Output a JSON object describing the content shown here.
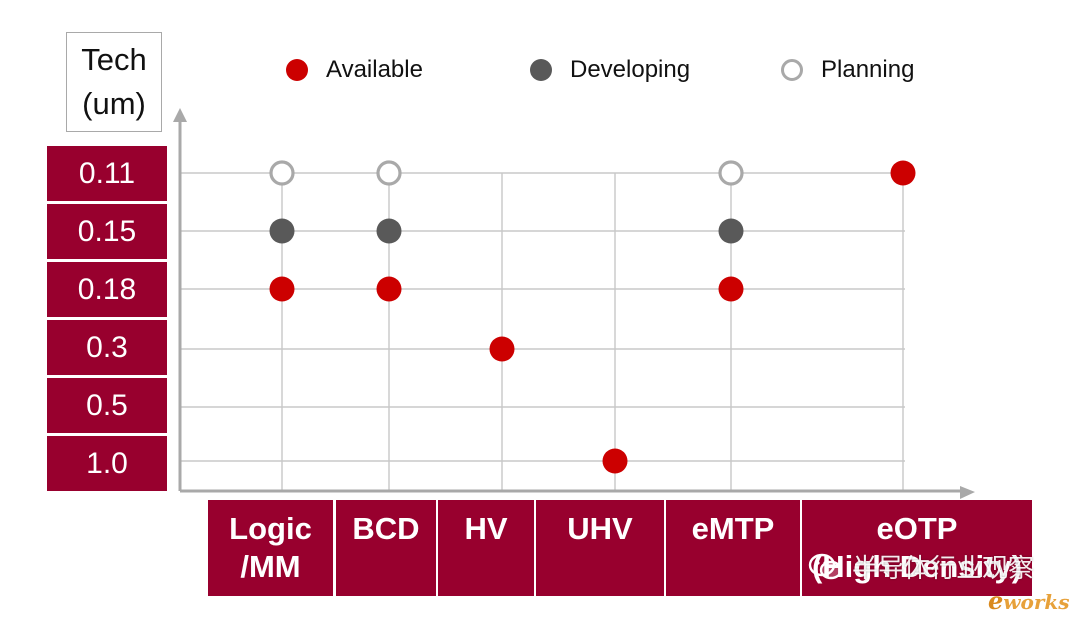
{
  "chart_data": {
    "type": "scatter",
    "y_header": [
      "Tech",
      "(um)"
    ],
    "y_categories": [
      "0.11",
      "0.15",
      "0.18",
      "0.3",
      "0.5",
      "1.0"
    ],
    "x_categories": [
      {
        "lines": [
          "Logic",
          "/MM"
        ]
      },
      {
        "lines": [
          "BCD"
        ]
      },
      {
        "lines": [
          "HV"
        ]
      },
      {
        "lines": [
          "UHV"
        ]
      },
      {
        "lines": [
          "eMTP"
        ]
      },
      {
        "lines": [
          "eOTP",
          "(High Density)"
        ]
      }
    ],
    "legend": [
      {
        "status": "available",
        "label": "Available",
        "color": "#cc0000"
      },
      {
        "status": "developing",
        "label": "Developing",
        "color": "#595959"
      },
      {
        "status": "planning",
        "label": "Planning",
        "color": "#ffffff"
      }
    ],
    "points": [
      {
        "x": "Logic /MM",
        "y": "0.11",
        "status": "planning"
      },
      {
        "x": "Logic /MM",
        "y": "0.15",
        "status": "developing"
      },
      {
        "x": "Logic /MM",
        "y": "0.18",
        "status": "available"
      },
      {
        "x": "BCD",
        "y": "0.11",
        "status": "planning"
      },
      {
        "x": "BCD",
        "y": "0.15",
        "status": "developing"
      },
      {
        "x": "BCD",
        "y": "0.18",
        "status": "available"
      },
      {
        "x": "HV",
        "y": "0.3",
        "status": "available"
      },
      {
        "x": "UHV",
        "y": "1.0",
        "status": "available"
      },
      {
        "x": "eMTP",
        "y": "0.11",
        "status": "planning"
      },
      {
        "x": "eMTP",
        "y": "0.15",
        "status": "developing"
      },
      {
        "x": "eMTP",
        "y": "0.18",
        "status": "available"
      },
      {
        "x": "eOTP (High Density)",
        "y": "0.11",
        "status": "available"
      }
    ],
    "grid": true,
    "legend_position": "top"
  },
  "watermark": {
    "text": "半导体行业观察",
    "brand": "eworks"
  },
  "colors": {
    "accent": "#98002e",
    "available": "#cc0000",
    "developing": "#595959",
    "planning_ring": "#a9a9a9",
    "grid": "#c8c8c8"
  }
}
